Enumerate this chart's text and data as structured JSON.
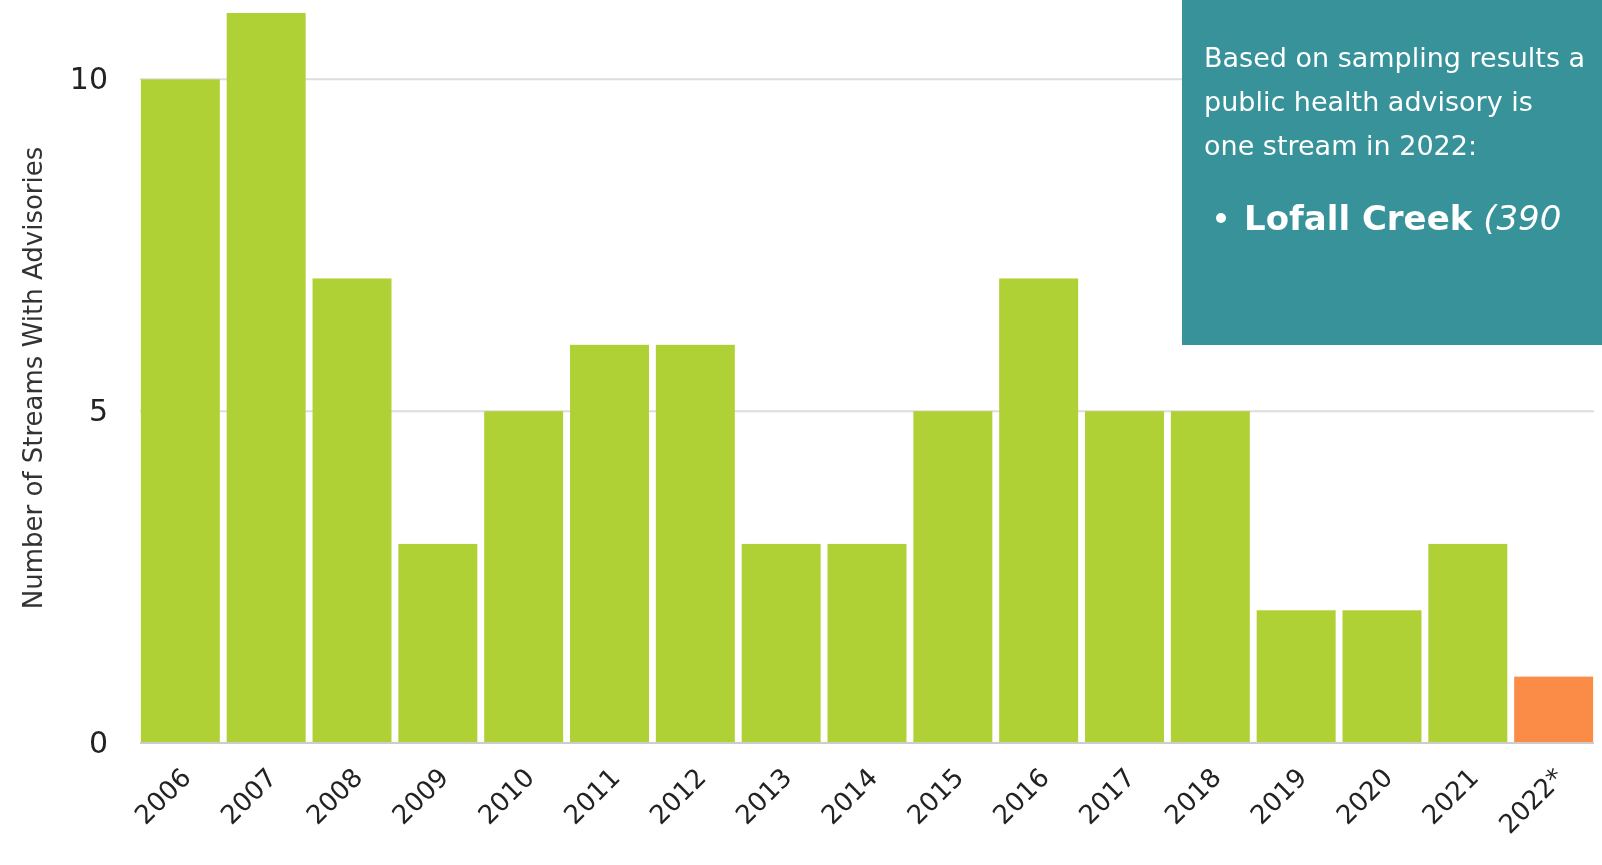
{
  "chart_data": {
    "type": "bar",
    "ylabel": "Number of Streams With Advisories",
    "categories": [
      "2006",
      "2007",
      "2008",
      "2009",
      "2010",
      "2011",
      "2012",
      "2013",
      "2014",
      "2015",
      "2016",
      "2017",
      "2018",
      "2019",
      "2020",
      "2021",
      "2022*"
    ],
    "values": [
      10,
      11,
      7,
      3,
      5,
      6,
      6,
      3,
      3,
      5,
      7,
      5,
      5,
      2,
      2,
      3,
      1
    ],
    "colors": [
      "#b0d136",
      "#b0d136",
      "#b0d136",
      "#b0d136",
      "#b0d136",
      "#b0d136",
      "#b0d136",
      "#b0d136",
      "#b0d136",
      "#b0d136",
      "#b0d136",
      "#b0d136",
      "#b0d136",
      "#b0d136",
      "#b0d136",
      "#b0d136",
      "#fb8c48"
    ],
    "ylim": [
      0,
      11
    ],
    "yticks": [
      0,
      5,
      10
    ],
    "grid": "y",
    "annotations": [
      "Based on sampling results a public health advisory is one stream in 2022:",
      "Lofall Creek",
      "(390"
    ]
  }
}
